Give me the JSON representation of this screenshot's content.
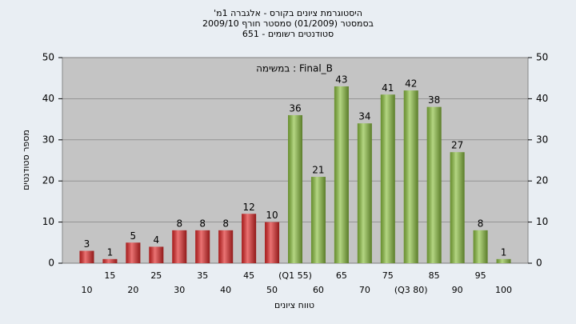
{
  "chart_data": {
    "type": "bar",
    "title": "'היסטוגרמת ציונים בקורס - אלגברה 1מ",
    "subtitle": "בסמסטר  (01/2009)  סמסטר חורף 2009/10",
    "subtitle2": "סטודנטים רשומים - 651",
    "annotation": "במשימה : Final_B",
    "y_label": "מספר סטודנטים",
    "x_label": "טווח ציונים",
    "categories": [
      "10",
      "15",
      "20",
      "25",
      "30",
      "35",
      "40",
      "45",
      "50",
      "(Q1 55)",
      "60",
      "65",
      "70",
      "75",
      "(Q3 80)",
      "85",
      "90",
      "95",
      "100"
    ],
    "values": [
      3,
      1,
      5,
      4,
      8,
      8,
      8,
      12,
      10,
      36,
      21,
      43,
      34,
      41,
      42,
      38,
      27,
      8,
      1
    ],
    "colors": [
      "#e02828",
      "#e02828",
      "#e02828",
      "#e02828",
      "#e02828",
      "#e02828",
      "#e02828",
      "#e02828",
      "#e02828",
      "#8cc040",
      "#8cc040",
      "#8cc040",
      "#8cc040",
      "#8cc040",
      "#8cc040",
      "#8cc040",
      "#8cc040",
      "#8cc040",
      "#8cc040"
    ],
    "ylim": [
      0,
      50
    ],
    "yticks": [
      0,
      10,
      20,
      30,
      40,
      50
    ],
    "grid": true
  }
}
